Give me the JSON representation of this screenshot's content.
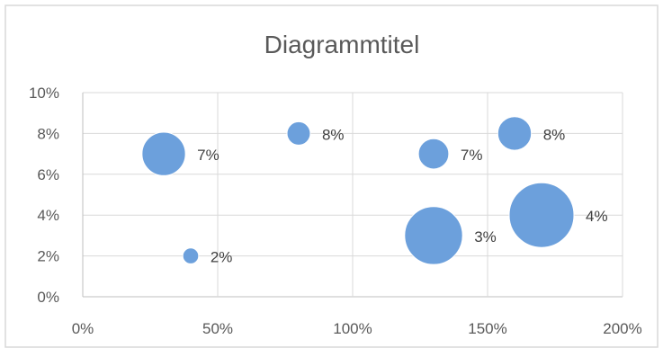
{
  "chart_data": {
    "type": "bubble",
    "title": "Diagrammtitel",
    "xlim": [
      0,
      2
    ],
    "ylim": [
      0,
      0.1
    ],
    "x_ticks": [
      "0%",
      "50%",
      "100%",
      "150%",
      "200%"
    ],
    "y_ticks": [
      "0%",
      "2%",
      "4%",
      "6%",
      "8%",
      "10%"
    ],
    "grid": true,
    "series": [
      {
        "color": "#6ca0dc",
        "points": [
          {
            "x": 0.3,
            "y": 0.07,
            "size": 0.45,
            "label": "7%"
          },
          {
            "x": 0.4,
            "y": 0.02,
            "size": 0.06,
            "label": "2%"
          },
          {
            "x": 0.8,
            "y": 0.08,
            "size": 0.13,
            "label": "8%"
          },
          {
            "x": 1.3,
            "y": 0.07,
            "size": 0.22,
            "label": "7%"
          },
          {
            "x": 1.3,
            "y": 0.03,
            "size": 0.8,
            "label": "3%"
          },
          {
            "x": 1.6,
            "y": 0.08,
            "size": 0.27,
            "label": "8%"
          },
          {
            "x": 1.7,
            "y": 0.04,
            "size": 1.0,
            "label": "4%"
          }
        ]
      }
    ]
  }
}
